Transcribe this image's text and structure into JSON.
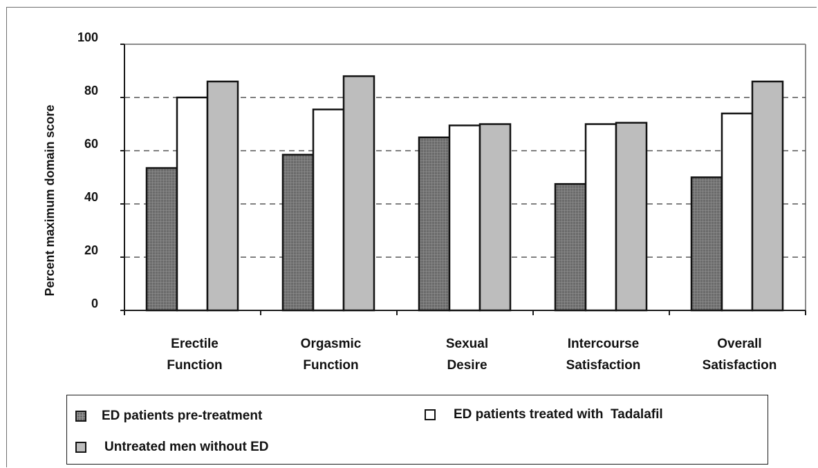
{
  "chart_data": {
    "type": "bar",
    "title": "",
    "xlabel": "",
    "ylabel": "Percent maximum domain score",
    "ylim": [
      0,
      100
    ],
    "yticks": [
      "0",
      "20",
      "40",
      "60",
      "80",
      "100"
    ],
    "grid": "dashed horizontal at 20, 40, 60, 80",
    "legend_position": "bottom",
    "categories": [
      [
        "Erectile",
        "Function"
      ],
      [
        "Orgasmic",
        "Function"
      ],
      [
        "Sexual",
        "Desire"
      ],
      [
        "Intercourse",
        "Satisfaction"
      ],
      [
        "Overall",
        "Satisfaction"
      ]
    ],
    "series": [
      {
        "name": "ED patients pre-treatment",
        "color": "#6b6b6b",
        "pattern": "crosshatch",
        "values": [
          53.5,
          58.5,
          65,
          47.5,
          50
        ]
      },
      {
        "name": "ED patients treated with  Tadalafil",
        "color": "#ffffff",
        "pattern": "solid",
        "values": [
          80,
          75.5,
          69.5,
          70,
          74
        ]
      },
      {
        "name": "Untreated men without ED",
        "color": "#bdbdbd",
        "pattern": "solid",
        "values": [
          86,
          88,
          70,
          70.5,
          86
        ]
      }
    ]
  }
}
